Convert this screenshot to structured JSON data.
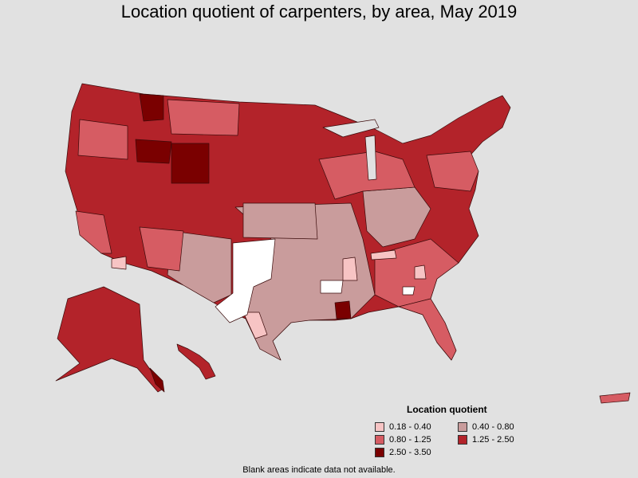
{
  "title": "Location quotient of carpenters, by area, May 2019",
  "legend": {
    "title": "Location quotient",
    "items": [
      {
        "label": "0.18 - 0.40",
        "color": "#f7c4c4"
      },
      {
        "label": "0.40 - 0.80",
        "color": "#c99c9c"
      },
      {
        "label": "0.80 - 1.25",
        "color": "#d65c63"
      },
      {
        "label": "1.25 - 2.50",
        "color": "#b3232a"
      },
      {
        "label": "2.50 - 3.50",
        "color": "#7a0000"
      }
    ]
  },
  "footnote": "Blank areas indicate data not available."
}
